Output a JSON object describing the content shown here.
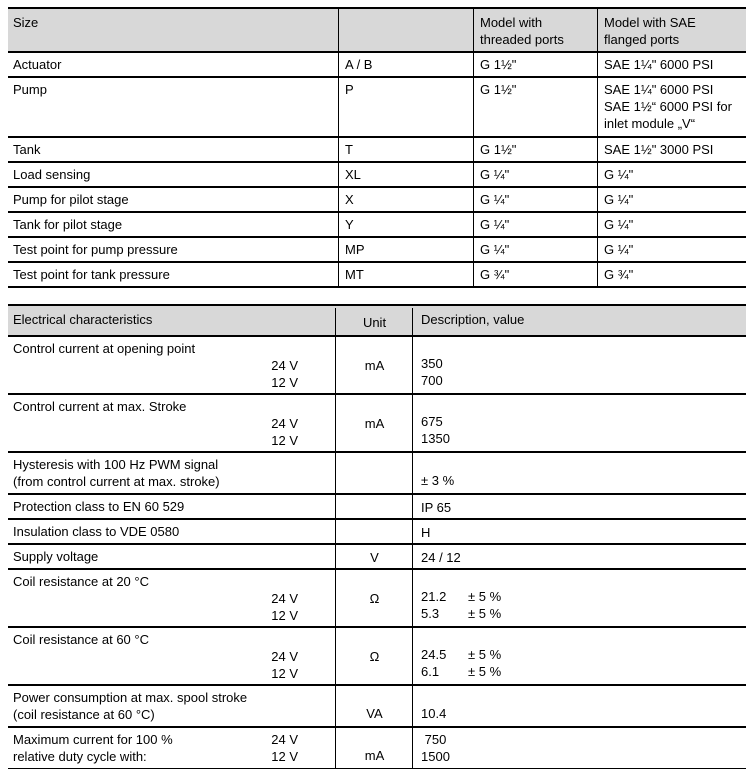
{
  "colors": {
    "page_bg": "#ffffff",
    "table_header_bg": "#d8d8d8",
    "border": "#000000",
    "text": "#000000"
  },
  "size_table": {
    "header": {
      "c1": "Size",
      "c2": "",
      "c3": "Model with\nthreaded ports",
      "c4": "Model with SAE\nflanged ports"
    },
    "rows": [
      {
        "name": "Actuator",
        "code": "A / B",
        "threaded": "G 1½\"",
        "flanged": "SAE 1¼\" 6000 PSI"
      },
      {
        "name": "Pump",
        "code": "P",
        "threaded": "G 1½\"",
        "flanged": "SAE 1¼\" 6000 PSI\nSAE 1½“ 6000 PSI for\ninlet module „V“"
      },
      {
        "name": "Tank",
        "code": "T",
        "threaded": "G 1½\"",
        "flanged": "SAE 1½\" 3000 PSI"
      },
      {
        "name": "Load sensing",
        "code": "XL",
        "threaded": "G ¼\"",
        "flanged": "G ¼\""
      },
      {
        "name": "Pump for pilot stage",
        "code": "X",
        "threaded": "G ¼\"",
        "flanged": "G ¼\""
      },
      {
        "name": "Tank for pilot stage",
        "code": "Y",
        "threaded": "G ¼\"",
        "flanged": "G ¼\""
      },
      {
        "name": "Test point for pump pressure",
        "code": "MP",
        "threaded": "G ¼\"",
        "flanged": "G ¼\""
      },
      {
        "name": "Test point for tank pressure",
        "code": "MT",
        "threaded": "G ¾\"",
        "flanged": "G ¾\""
      }
    ]
  },
  "elec_table": {
    "header": {
      "c1": "Electrical characteristics",
      "c2": "Unit",
      "c3": "Description, value"
    },
    "rows": [
      {
        "label": "Control current at opening point",
        "sub": "24 V\n12 V",
        "unit": "mA",
        "value": "350\n700"
      },
      {
        "label": "Control current at max. Stroke",
        "sub": "24 V\n12 V",
        "unit": "mA",
        "value": "675\n1350"
      },
      {
        "label": "Hysteresis with 100 Hz PWM signal\n(from control current at max. stroke)",
        "sub": "",
        "unit": "",
        "value": "± 3 %"
      },
      {
        "label": "Protection class to EN 60 529",
        "sub": "",
        "unit": "",
        "value": "IP 65"
      },
      {
        "label": "Insulation class to VDE 0580",
        "sub": "",
        "unit": "",
        "value": "H"
      },
      {
        "label": "Supply voltage",
        "sub": "",
        "unit": "V",
        "value": "24 / 12"
      },
      {
        "label": "Coil resistance at 20 °C",
        "sub": "24 V\n12 V",
        "unit": "Ω",
        "values": [
          {
            "num": "21.2",
            "tol": "± 5 %"
          },
          {
            "num": "5.3",
            "tol": "± 5 %"
          }
        ]
      },
      {
        "label": "Coil resistance at 60 °C",
        "sub": "24 V\n12 V",
        "unit": "Ω",
        "values": [
          {
            "num": "24.5",
            "tol": "± 5 %"
          },
          {
            "num": "6.1",
            "tol": "± 5 %"
          }
        ]
      },
      {
        "label": "Power consumption at max. spool stroke\n(coil resistance at 60 °C)",
        "sub": "",
        "unit": "VA",
        "value": "10.4"
      },
      {
        "label": "Maximum current for 100 %\nrelative duty cycle with:",
        "sub": "24 V\n12 V",
        "unit": "mA",
        "value": " 750\n1500"
      }
    ]
  }
}
